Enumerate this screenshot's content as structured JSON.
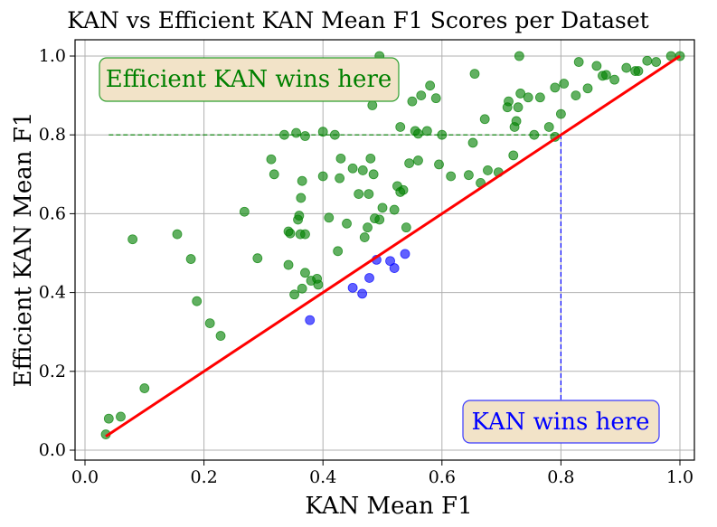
{
  "chart_data": {
    "type": "scatter",
    "title": "KAN vs Efficient KAN Mean F1 Scores per Dataset",
    "xlabel": "KAN Mean F1",
    "ylabel": "Efficient KAN Mean F1",
    "xlim": [
      0.0,
      1.02
    ],
    "ylim": [
      0.0,
      1.04
    ],
    "xticks": [
      0.0,
      0.2,
      0.4,
      0.6,
      0.8,
      1.0
    ],
    "yticks": [
      0.0,
      0.2,
      0.4,
      0.6,
      0.8,
      1.0
    ],
    "xtick_labels": [
      "0.0",
      "0.2",
      "0.4",
      "0.6",
      "0.8",
      "1.0"
    ],
    "ytick_labels": [
      "0.0",
      "0.2",
      "0.4",
      "0.6",
      "0.8",
      "1.0"
    ],
    "grid": true,
    "diagonal": {
      "x": [
        0.035,
        1.0
      ],
      "y": [
        0.035,
        1.0
      ],
      "color": "#ff0000"
    },
    "reference_lines": [
      {
        "orientation": "horizontal",
        "y": 0.8,
        "x_range": [
          0.04,
          0.8
        ],
        "color": "#008000",
        "style": "dashed"
      },
      {
        "orientation": "vertical",
        "x": 0.8,
        "y_range": [
          0.0,
          0.8
        ],
        "color": "#0000ff",
        "style": "dashed"
      }
    ],
    "annotations": [
      {
        "text": "Efficient KAN wins here",
        "x": 0.28,
        "y": 0.93,
        "color": "#008000"
      },
      {
        "text": "KAN wins here",
        "x": 0.77,
        "y": 0.07,
        "color": "#0000ff"
      }
    ],
    "series": [
      {
        "name": "Efficient KAN wins",
        "color": "#008000",
        "points": [
          [
            0.035,
            0.04
          ],
          [
            0.04,
            0.08
          ],
          [
            0.06,
            0.085
          ],
          [
            0.08,
            0.535
          ],
          [
            0.1,
            0.157
          ],
          [
            0.155,
            0.548
          ],
          [
            0.178,
            0.485
          ],
          [
            0.188,
            0.378
          ],
          [
            0.21,
            0.322
          ],
          [
            0.228,
            0.29
          ],
          [
            0.268,
            0.605
          ],
          [
            0.29,
            0.487
          ],
          [
            0.313,
            0.738
          ],
          [
            0.318,
            0.7
          ],
          [
            0.335,
            0.8
          ],
          [
            0.342,
            0.47
          ],
          [
            0.342,
            0.555
          ],
          [
            0.345,
            0.55
          ],
          [
            0.352,
            0.395
          ],
          [
            0.355,
            0.805
          ],
          [
            0.358,
            0.585
          ],
          [
            0.36,
            0.595
          ],
          [
            0.362,
            0.548
          ],
          [
            0.363,
            0.64
          ],
          [
            0.365,
            0.41
          ],
          [
            0.365,
            0.683
          ],
          [
            0.37,
            0.548
          ],
          [
            0.37,
            0.797
          ],
          [
            0.37,
            0.45
          ],
          [
            0.38,
            0.43
          ],
          [
            0.39,
            0.435
          ],
          [
            0.392,
            0.42
          ],
          [
            0.4,
            0.808
          ],
          [
            0.4,
            0.695
          ],
          [
            0.41,
            0.59
          ],
          [
            0.42,
            0.8
          ],
          [
            0.425,
            0.505
          ],
          [
            0.428,
            0.69
          ],
          [
            0.43,
            0.74
          ],
          [
            0.44,
            0.575
          ],
          [
            0.45,
            0.715
          ],
          [
            0.46,
            0.65
          ],
          [
            0.467,
            0.71
          ],
          [
            0.47,
            0.54
          ],
          [
            0.475,
            0.565
          ],
          [
            0.477,
            0.65
          ],
          [
            0.48,
            0.74
          ],
          [
            0.483,
            0.875
          ],
          [
            0.485,
            0.7
          ],
          [
            0.487,
            0.588
          ],
          [
            0.495,
            0.585
          ],
          [
            0.495,
            1.0
          ],
          [
            0.5,
            0.615
          ],
          [
            0.52,
            0.61
          ],
          [
            0.525,
            0.67
          ],
          [
            0.53,
            0.82
          ],
          [
            0.53,
            0.655
          ],
          [
            0.535,
            0.66
          ],
          [
            0.54,
            0.565
          ],
          [
            0.545,
            0.728
          ],
          [
            0.55,
            0.885
          ],
          [
            0.555,
            0.81
          ],
          [
            0.56,
            0.803
          ],
          [
            0.56,
            0.735
          ],
          [
            0.565,
            0.9
          ],
          [
            0.575,
            0.81
          ],
          [
            0.58,
            0.925
          ],
          [
            0.59,
            0.893
          ],
          [
            0.595,
            0.725
          ],
          [
            0.6,
            0.8
          ],
          [
            0.615,
            0.695
          ],
          [
            0.645,
            0.698
          ],
          [
            0.652,
            0.78
          ],
          [
            0.655,
            0.955
          ],
          [
            0.665,
            0.678
          ],
          [
            0.672,
            0.84
          ],
          [
            0.677,
            0.71
          ],
          [
            0.695,
            0.705
          ],
          [
            0.71,
            0.87
          ],
          [
            0.712,
            0.885
          ],
          [
            0.72,
            0.748
          ],
          [
            0.722,
            0.82
          ],
          [
            0.725,
            0.835
          ],
          [
            0.728,
            0.87
          ],
          [
            0.73,
            1.0
          ],
          [
            0.732,
            0.905
          ],
          [
            0.745,
            0.895
          ],
          [
            0.755,
            0.8
          ],
          [
            0.765,
            0.895
          ],
          [
            0.78,
            0.82
          ],
          [
            0.79,
            0.795
          ],
          [
            0.79,
            0.92
          ],
          [
            0.8,
            0.853
          ],
          [
            0.805,
            0.93
          ],
          [
            0.825,
            0.9
          ],
          [
            0.83,
            0.985
          ],
          [
            0.845,
            0.918
          ],
          [
            0.86,
            0.975
          ],
          [
            0.87,
            0.95
          ],
          [
            0.876,
            0.952
          ],
          [
            0.89,
            0.94
          ],
          [
            0.91,
            0.97
          ],
          [
            0.925,
            0.962
          ],
          [
            0.93,
            0.962
          ],
          [
            0.945,
            0.988
          ],
          [
            0.96,
            0.985
          ],
          [
            0.985,
            1.0
          ],
          [
            1.0,
            1.0
          ]
        ]
      },
      {
        "name": "KAN wins",
        "color": "#0000ff",
        "points": [
          [
            0.378,
            0.33
          ],
          [
            0.45,
            0.412
          ],
          [
            0.466,
            0.397
          ],
          [
            0.478,
            0.437
          ],
          [
            0.49,
            0.483
          ],
          [
            0.513,
            0.48
          ],
          [
            0.52,
            0.462
          ],
          [
            0.538,
            0.498
          ]
        ]
      }
    ]
  }
}
